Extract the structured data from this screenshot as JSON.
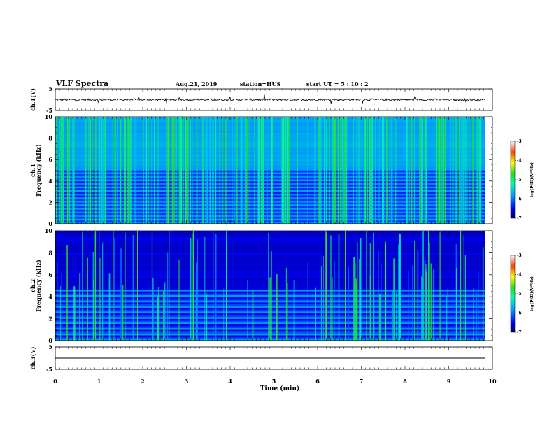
{
  "header": {
    "title": "VLF Spectra",
    "date": "Aug.21, 2019",
    "station": "station=HUS",
    "start_label": "start  UT =  5 : 10 : 2"
  },
  "chart_data": [
    {
      "type": "line",
      "ylabel": "ch.1(V)",
      "ylim": [
        -5,
        5
      ],
      "yticks": [
        "5",
        "-5"
      ],
      "xlim": [
        0,
        10
      ],
      "baseline": 0,
      "color": "#000000"
    },
    {
      "type": "heatmap",
      "ylabel": "ch.1\nFrequency (kHz)",
      "ylim": [
        0,
        10
      ],
      "yticks": [
        "0",
        "2",
        "4",
        "6",
        "8",
        "10"
      ],
      "xlim": [
        0,
        10
      ],
      "colorbar": {
        "label": "log(PSD)(V²/Hz)",
        "range": [
          -7,
          -3
        ],
        "ticks": [
          "-3",
          "-4",
          "-5",
          "-6",
          "-7"
        ]
      }
    },
    {
      "type": "heatmap",
      "ylabel": "ch.2\nFrequency (kHz)",
      "ylim": [
        0,
        10
      ],
      "yticks": [
        "0",
        "2",
        "4",
        "6",
        "8",
        "10"
      ],
      "xlim": [
        0,
        10
      ],
      "colorbar": {
        "label": "log(PSD)(V²/Hz)",
        "range": [
          -7,
          -3
        ],
        "ticks": [
          "-3",
          "-4",
          "-5",
          "-6",
          "-7"
        ]
      }
    },
    {
      "type": "line",
      "ylabel": "ch.3(V)",
      "ylim": [
        -5,
        5
      ],
      "yticks": [
        "5",
        "-5"
      ],
      "xlim": [
        0,
        10
      ],
      "baseline": 0,
      "color": "#000000"
    }
  ],
  "xaxis": {
    "label": "Time  (min)",
    "ticks": [
      "0",
      "1",
      "2",
      "3",
      "4",
      "5",
      "6",
      "7",
      "8",
      "9",
      "10"
    ],
    "range": [
      0,
      10
    ]
  }
}
